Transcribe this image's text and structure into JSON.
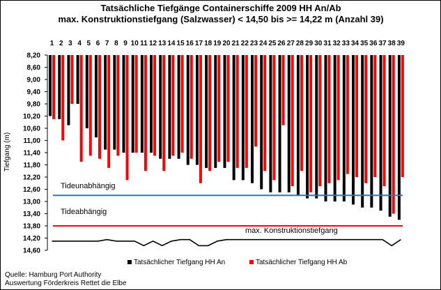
{
  "chart_data": {
    "type": "bar",
    "title": "Tatsächliche Tiefgänge Containerschiffe  2009 HH An/Ab",
    "subtitle": "max. Konstruktionstiefgang  (Salzwasser)  < 14,50 bis >= 14,22 m (Anzahl 39)",
    "ylabel": "Tiefgang (m)",
    "ylim": [
      8.2,
      14.6
    ],
    "y_inverted": true,
    "y_ticks": [
      "8,20",
      "8,60",
      "9,00",
      "9,40",
      "9,80",
      "10,20",
      "10,60",
      "11,00",
      "11,40",
      "11,80",
      "12,20",
      "12,60",
      "13,00",
      "13,40",
      "13,80",
      "14,20",
      "14,60"
    ],
    "categories": [
      "1",
      "2",
      "3",
      "4",
      "5",
      "6",
      "7",
      "8",
      "9",
      "10",
      "11",
      "12",
      "13",
      "14",
      "15",
      "16",
      "17",
      "18",
      "19",
      "20",
      "21",
      "22",
      "23",
      "24",
      "25",
      "26",
      "27",
      "28",
      "29",
      "30",
      "31",
      "32",
      "33",
      "34",
      "35",
      "36",
      "37",
      "38",
      "39"
    ],
    "series": [
      {
        "name": "Tatsächlicher Tiefgang HH An",
        "color": "#000000",
        "values": [
          10.2,
          10.3,
          10.5,
          9.8,
          10.6,
          10.9,
          11.3,
          11.3,
          11.4,
          11.4,
          11.4,
          11.4,
          11.6,
          11.6,
          11.6,
          11.8,
          11.8,
          11.9,
          11.9,
          11.9,
          12.3,
          12.3,
          12.4,
          12.6,
          12.7,
          12.7,
          12.7,
          12.8,
          12.9,
          12.9,
          13.0,
          13.0,
          13.0,
          13.1,
          13.2,
          13.2,
          13.3,
          13.5,
          13.6
        ]
      },
      {
        "name": "Tatsächlicher Tiefgang HH Ab",
        "color": "#ff0000",
        "values": [
          10.3,
          11.0,
          9.8,
          11.7,
          11.5,
          11.6,
          11.9,
          11.5,
          12.3,
          11.4,
          12.0,
          11.5,
          12.0,
          11.5,
          11.4,
          11.6,
          12.4,
          12.0,
          11.7,
          11.7,
          11.9,
          11.9,
          11.2,
          12.0,
          12.3,
          10.5,
          12.5,
          12.0,
          12.7,
          12.5,
          12.4,
          12.3,
          12.1,
          12.2,
          12.4,
          12.2,
          12.5,
          13.4,
          12.2
        ]
      }
    ],
    "lines": [
      {
        "name": "Tideunabhängig",
        "value": 12.8,
        "color": "#2f75b5"
      },
      {
        "name": "Tideabhängig",
        "value": 13.8,
        "color": "#ff0000"
      }
    ],
    "konstruktion": {
      "label": "max. Konstruktionstiefgang",
      "values": [
        14.3,
        14.3,
        14.3,
        14.3,
        14.3,
        14.3,
        14.25,
        14.3,
        14.3,
        14.3,
        14.45,
        14.3,
        14.45,
        14.3,
        14.25,
        14.25,
        14.45,
        14.45,
        14.3,
        14.25,
        14.25,
        14.25,
        14.25,
        14.25,
        14.25,
        14.25,
        14.25,
        14.25,
        14.25,
        14.25,
        14.25,
        14.25,
        14.25,
        14.25,
        14.25,
        14.25,
        14.25,
        14.45,
        14.25
      ]
    },
    "legend_position": "bottom",
    "grid": false
  },
  "source": {
    "line1": "Quelle: Hamburg Port Authority",
    "line2": "Auswertung Förderkreis Rettet die Elbe"
  }
}
